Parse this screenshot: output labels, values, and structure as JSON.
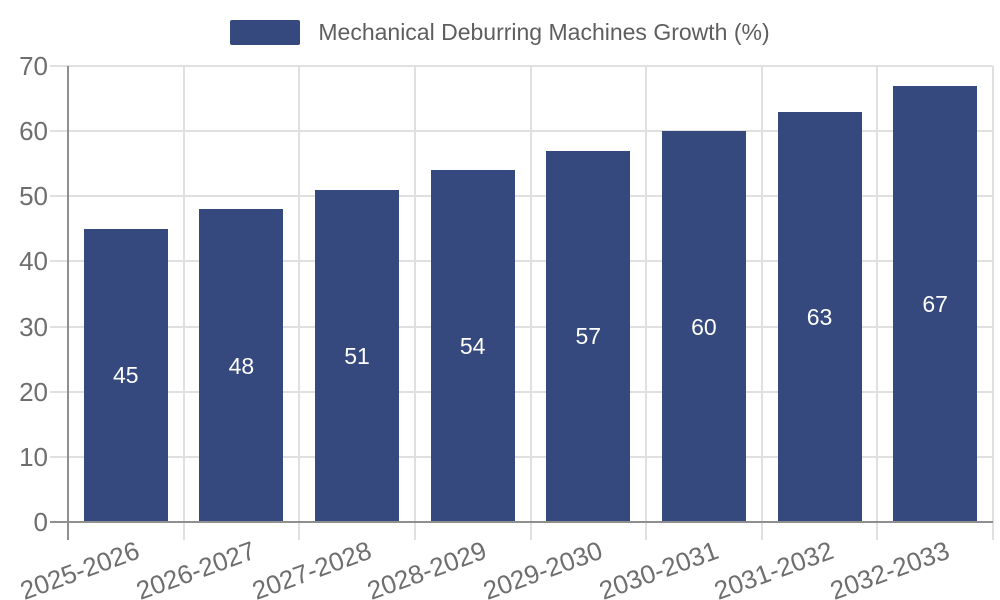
{
  "legend": {
    "items": [
      {
        "label": "Mechanical Deburring Machines Growth (%)",
        "color": "#36497e"
      }
    ]
  },
  "chart_data": {
    "type": "bar",
    "title": "Mechanical Deburring Machines Growth (%)",
    "categories": [
      "2025-2026",
      "2026-2027",
      "2027-2028",
      "2028-2029",
      "2029-2030",
      "2030-2031",
      "2031-2032",
      "2032-2033"
    ],
    "values": [
      45,
      48,
      51,
      54,
      57,
      60,
      63,
      67
    ],
    "value_labels": [
      "45",
      "48",
      "51",
      "54",
      "57",
      "60",
      "63",
      "67"
    ],
    "xlabel": "",
    "ylabel": "",
    "ylim": [
      0,
      70
    ],
    "yticks": [
      0,
      10,
      20,
      30,
      40,
      50,
      60,
      70
    ],
    "grid": true,
    "legend_position": "top-center",
    "x_label_rotation_deg": -20,
    "colors": {
      "bar": "#36497e",
      "value_label": "#ffffff",
      "axis_line": "#8f8f8f",
      "grid_line": "#e0e0e0",
      "tick_label": "#6e6e6e",
      "legend_text": "#5e5e5e",
      "background": "#ffffff"
    }
  }
}
